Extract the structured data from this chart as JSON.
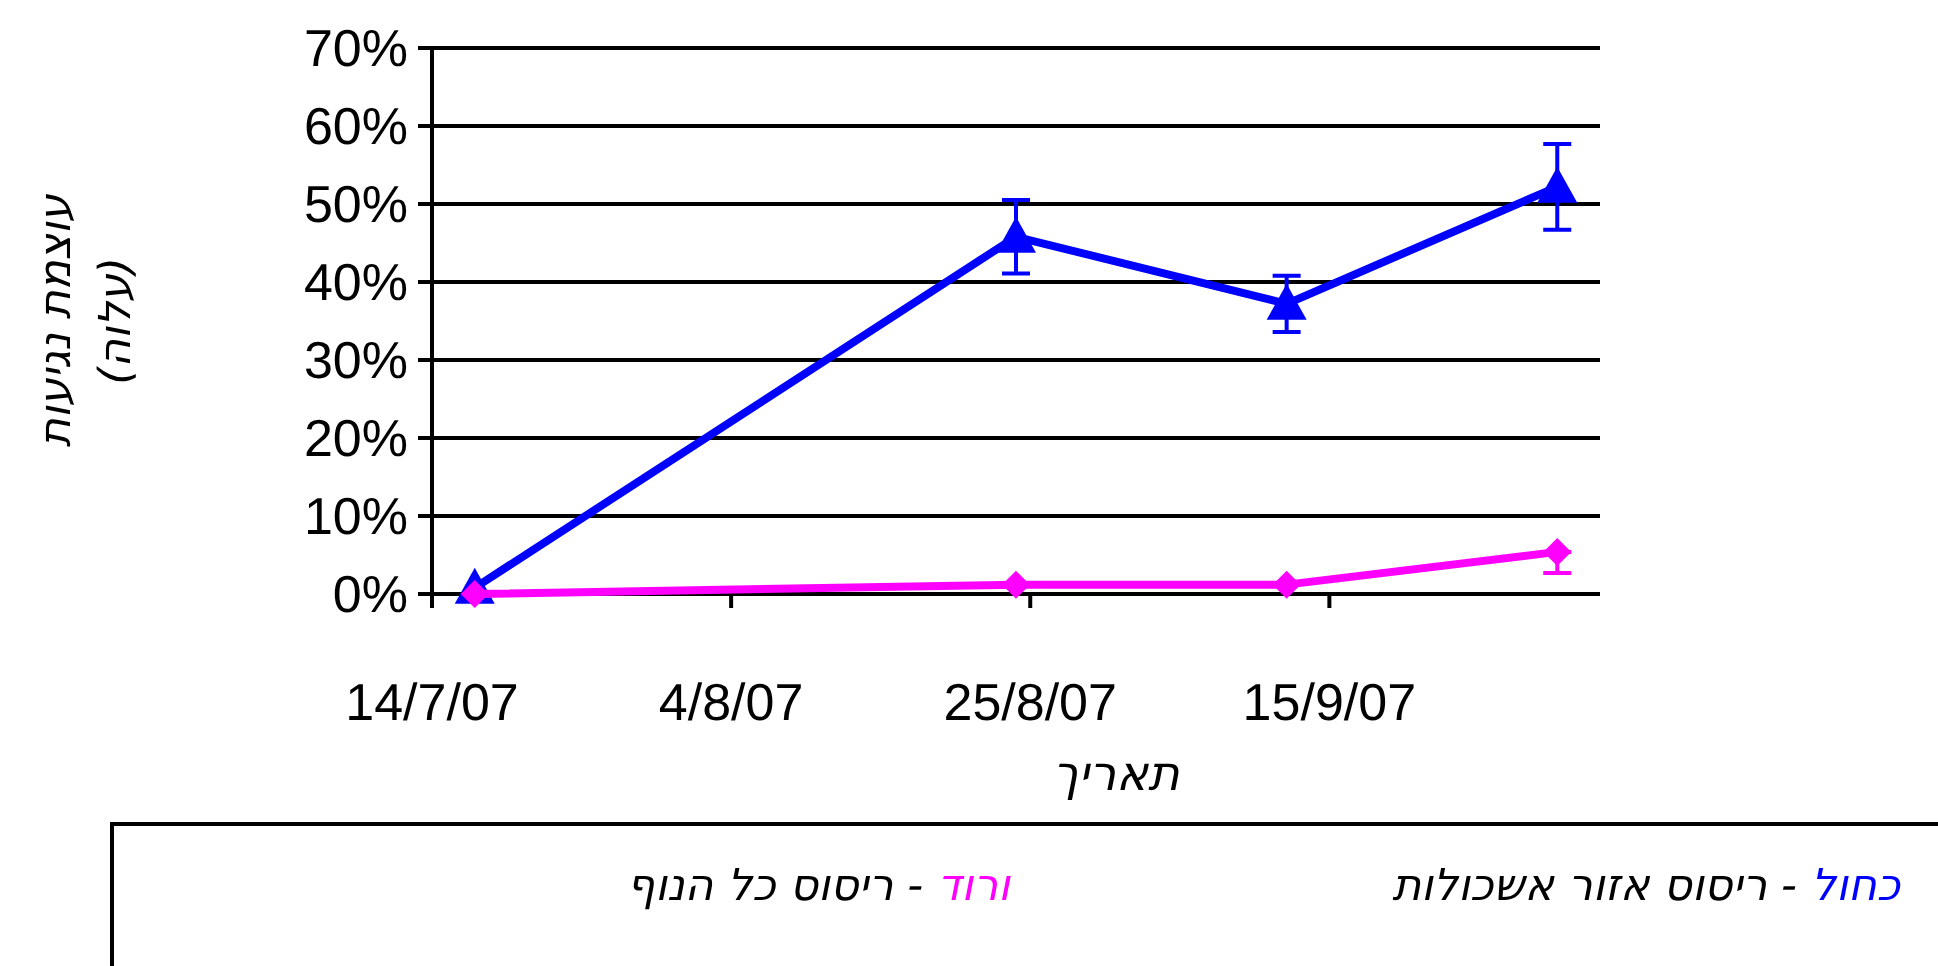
{
  "chart_data": {
    "type": "line",
    "xlabel": "תאריך",
    "ylabel": "עוצמת נגיעות\n(עלוה)",
    "x": [
      "2007-07-17",
      "2007-08-24",
      "2007-09-12",
      "2007-10-01"
    ],
    "xlim": [
      "2007-07-14",
      "2007-10-04"
    ],
    "xticks": [
      {
        "value": "2007-07-14",
        "label": "14/7/07"
      },
      {
        "value": "2007-08-04",
        "label": "4/8/07"
      },
      {
        "value": "2007-08-25",
        "label": "25/8/07"
      },
      {
        "value": "2007-09-15",
        "label": "15/9/07"
      }
    ],
    "ylim": [
      0,
      70
    ],
    "yticks": [
      {
        "value": 0,
        "label": "0%"
      },
      {
        "value": 10,
        "label": "10%"
      },
      {
        "value": 20,
        "label": "20%"
      },
      {
        "value": 30,
        "label": "30%"
      },
      {
        "value": 40,
        "label": "40%"
      },
      {
        "value": 50,
        "label": "50%"
      },
      {
        "value": 60,
        "label": "60%"
      },
      {
        "value": 70,
        "label": "70%"
      }
    ],
    "grid": "y",
    "legend": "bottom",
    "line_style": "solid",
    "series": [
      {
        "name": "כחול - ריסוס אזור אשכולות",
        "color": "#0000ff",
        "marker": "triangle",
        "values": [
          0.8,
          45.8,
          37.2,
          52.2
        ],
        "errors": [
          null,
          4.7,
          3.6,
          5.5
        ]
      },
      {
        "name": "ורוד - ריסוס כל הנוף",
        "color": "#ff00ff",
        "marker": "diamond",
        "values": [
          0,
          1.2,
          1.2,
          5.4
        ],
        "errors": [
          null,
          null,
          null,
          [
            2.7,
            5.4
          ]
        ]
      }
    ]
  }
}
